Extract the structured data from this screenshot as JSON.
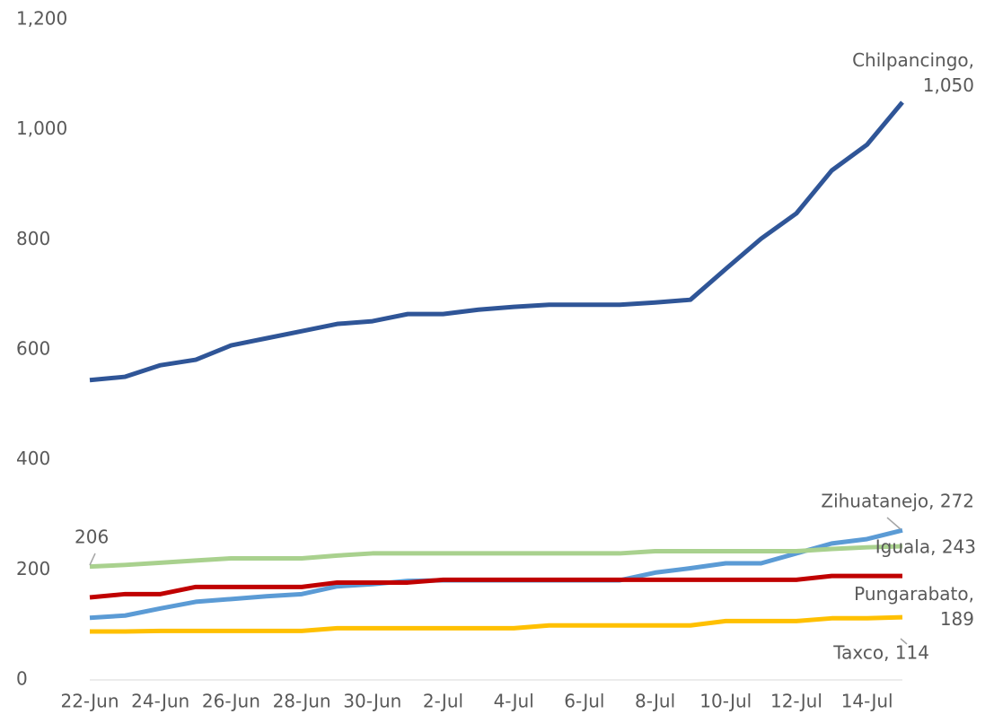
{
  "chart_data": {
    "type": "line",
    "categories": [
      "22-Jun",
      null,
      "24-Jun",
      null,
      "26-Jun",
      null,
      "28-Jun",
      null,
      "30-Jun",
      null,
      "2-Jul",
      null,
      "4-Jul",
      null,
      "6-Jul",
      null,
      "8-Jul",
      null,
      "10-Jul",
      null,
      "12-Jul",
      null,
      "14-Jul",
      null
    ],
    "ylim": [
      0,
      1200
    ],
    "yticks": [
      0,
      200,
      400,
      600,
      800,
      {
        "value": 1000,
        "label": "1,000"
      },
      {
        "value": 1200,
        "label": "1,200"
      }
    ],
    "grid": false,
    "series": [
      {
        "name": "Chilpancingo",
        "color": "#2f5597",
        "values": [
          545,
          551,
          572,
          582,
          608,
          621,
          634,
          647,
          652,
          665,
          665,
          673,
          678,
          682,
          682,
          682,
          686,
          691,
          747,
          802,
          848,
          926,
          973,
          1050
        ],
        "value_labels": [
          null,
          null,
          null,
          null,
          null,
          null,
          null,
          null,
          null,
          null,
          null,
          null,
          null,
          null,
          null,
          null,
          null,
          null,
          null,
          null,
          null,
          null,
          null,
          "Chilpancingo, 1,050"
        ]
      },
      {
        "name": "Zihuatanejo",
        "color": "#5b9bd5",
        "values": [
          113,
          117,
          130,
          142,
          147,
          152,
          156,
          170,
          174,
          180,
          181,
          181,
          181,
          181,
          181,
          181,
          195,
          203,
          212,
          212,
          230,
          248,
          256,
          272
        ],
        "value_labels": [
          null,
          null,
          null,
          null,
          null,
          null,
          null,
          null,
          null,
          null,
          null,
          null,
          null,
          null,
          null,
          null,
          null,
          null,
          null,
          null,
          null,
          null,
          null,
          "Zihuatanejo, 272"
        ]
      },
      {
        "name": "Iguala",
        "color": "#a9d18e",
        "values": [
          206,
          209,
          213,
          217,
          221,
          221,
          221,
          226,
          230,
          230,
          230,
          230,
          230,
          230,
          230,
          230,
          234,
          234,
          234,
          234,
          234,
          238,
          241,
          243
        ],
        "value_labels": [
          "206",
          null,
          null,
          null,
          null,
          null,
          null,
          null,
          null,
          null,
          null,
          null,
          null,
          null,
          null,
          null,
          null,
          null,
          null,
          null,
          null,
          null,
          null,
          "Iguala, 243"
        ]
      },
      {
        "name": "Pungarabato",
        "color": "#c00000",
        "values": [
          150,
          156,
          156,
          169,
          169,
          169,
          169,
          177,
          177,
          177,
          182,
          182,
          182,
          182,
          182,
          182,
          182,
          182,
          182,
          182,
          182,
          189,
          189,
          189
        ],
        "value_labels": [
          null,
          null,
          null,
          null,
          null,
          null,
          null,
          null,
          null,
          null,
          null,
          null,
          null,
          null,
          null,
          null,
          null,
          null,
          null,
          null,
          null,
          null,
          null,
          "Pungarabato, 189"
        ]
      },
      {
        "name": "Taxco",
        "color": "#ffc000",
        "values": [
          88,
          88,
          89,
          89,
          89,
          89,
          89,
          94,
          94,
          94,
          94,
          94,
          94,
          99,
          99,
          99,
          99,
          99,
          107,
          107,
          107,
          112,
          112,
          114
        ],
        "value_labels": [
          null,
          null,
          null,
          null,
          null,
          null,
          null,
          null,
          null,
          null,
          null,
          null,
          null,
          null,
          null,
          null,
          null,
          null,
          null,
          null,
          null,
          null,
          null,
          "Taxco, 114"
        ]
      }
    ]
  }
}
